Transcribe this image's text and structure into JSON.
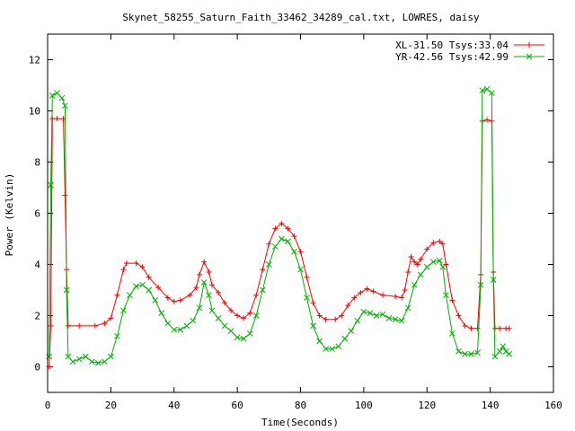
{
  "chart_data": {
    "type": "line",
    "title": "Skynet_58255_Saturn_Faith_33462_34289_cal.txt, LOWRES, daisy",
    "xlabel": "Time(Seconds)",
    "ylabel": "Power (Kelvin)",
    "xlim": [
      0,
      160
    ],
    "ylim": [
      -1,
      13
    ],
    "xticks": [
      0,
      20,
      40,
      60,
      80,
      100,
      120,
      140,
      160
    ],
    "yticks": [
      0,
      2,
      4,
      6,
      8,
      10,
      12
    ],
    "grid": false,
    "legend_position": "top-right",
    "series": [
      {
        "name": "XL-31.50 Tsys:33.04",
        "color": "#ff0000",
        "marker": "plus",
        "points": [
          [
            0.5,
            0.0
          ],
          [
            1,
            1.6
          ],
          [
            1.5,
            9.7
          ],
          [
            3,
            9.7
          ],
          [
            5,
            9.7
          ],
          [
            5.5,
            6.7
          ],
          [
            6,
            3.8
          ],
          [
            6.5,
            1.6
          ],
          [
            10,
            1.6
          ],
          [
            15,
            1.6
          ],
          [
            18,
            1.7
          ],
          [
            20,
            1.9
          ],
          [
            22,
            2.8
          ],
          [
            24,
            3.8
          ],
          [
            25,
            4.05
          ],
          [
            28,
            4.05
          ],
          [
            30,
            3.9
          ],
          [
            32,
            3.5
          ],
          [
            35,
            3.1
          ],
          [
            38,
            2.7
          ],
          [
            40,
            2.55
          ],
          [
            42,
            2.6
          ],
          [
            45,
            2.8
          ],
          [
            47,
            3.1
          ],
          [
            48,
            3.6
          ],
          [
            49.5,
            4.1
          ],
          [
            51,
            3.7
          ],
          [
            52,
            3.2
          ],
          [
            54,
            2.9
          ],
          [
            56,
            2.5
          ],
          [
            58,
            2.2
          ],
          [
            60,
            2.0
          ],
          [
            62,
            1.9
          ],
          [
            64,
            2.1
          ],
          [
            66,
            2.8
          ],
          [
            68,
            3.8
          ],
          [
            70,
            4.8
          ],
          [
            72,
            5.4
          ],
          [
            74,
            5.6
          ],
          [
            76,
            5.4
          ],
          [
            78,
            5.1
          ],
          [
            80,
            4.5
          ],
          [
            82,
            3.5
          ],
          [
            84,
            2.5
          ],
          [
            86,
            2.0
          ],
          [
            88,
            1.85
          ],
          [
            91,
            1.85
          ],
          [
            93,
            2.0
          ],
          [
            95,
            2.4
          ],
          [
            97,
            2.7
          ],
          [
            99,
            2.9
          ],
          [
            101,
            3.05
          ],
          [
            103,
            2.95
          ],
          [
            106,
            2.8
          ],
          [
            110,
            2.75
          ],
          [
            112,
            2.7
          ],
          [
            113,
            3.0
          ],
          [
            114,
            3.7
          ],
          [
            115,
            4.3
          ],
          [
            116,
            4.1
          ],
          [
            117,
            4.0
          ],
          [
            118,
            4.2
          ],
          [
            120,
            4.6
          ],
          [
            122,
            4.85
          ],
          [
            124,
            4.9
          ],
          [
            125,
            4.8
          ],
          [
            126,
            4.0
          ],
          [
            128,
            2.6
          ],
          [
            130,
            2.0
          ],
          [
            132,
            1.6
          ],
          [
            134,
            1.5
          ],
          [
            136,
            1.5
          ],
          [
            137,
            3.6
          ],
          [
            137.5,
            9.6
          ],
          [
            139,
            9.65
          ],
          [
            140.5,
            9.6
          ],
          [
            141,
            3.7
          ],
          [
            141.5,
            1.5
          ],
          [
            143,
            1.5
          ],
          [
            145,
            1.5
          ],
          [
            146,
            1.5
          ]
        ]
      },
      {
        "name": "YR-42.56 Tsys:42.99",
        "color": "#00b000",
        "marker": "cross",
        "points": [
          [
            0.5,
            0.4
          ],
          [
            1,
            7.1
          ],
          [
            1.5,
            10.6
          ],
          [
            3,
            10.7
          ],
          [
            4.5,
            10.5
          ],
          [
            5.5,
            10.2
          ],
          [
            6,
            3.0
          ],
          [
            6.5,
            0.4
          ],
          [
            8,
            0.2
          ],
          [
            10,
            0.3
          ],
          [
            12,
            0.4
          ],
          [
            14,
            0.2
          ],
          [
            16,
            0.15
          ],
          [
            18,
            0.2
          ],
          [
            20,
            0.4
          ],
          [
            22,
            1.2
          ],
          [
            24,
            2.2
          ],
          [
            26,
            2.8
          ],
          [
            28,
            3.15
          ],
          [
            30,
            3.2
          ],
          [
            32,
            3.0
          ],
          [
            34,
            2.6
          ],
          [
            36,
            2.1
          ],
          [
            38,
            1.7
          ],
          [
            40,
            1.45
          ],
          [
            42,
            1.45
          ],
          [
            44,
            1.6
          ],
          [
            46,
            1.8
          ],
          [
            48,
            2.3
          ],
          [
            49.5,
            3.3
          ],
          [
            51,
            2.8
          ],
          [
            52,
            2.2
          ],
          [
            54,
            1.9
          ],
          [
            56,
            1.6
          ],
          [
            58,
            1.4
          ],
          [
            60,
            1.15
          ],
          [
            62,
            1.1
          ],
          [
            64,
            1.3
          ],
          [
            66,
            2.0
          ],
          [
            68,
            3.0
          ],
          [
            70,
            4.0
          ],
          [
            72,
            4.7
          ],
          [
            74,
            5.0
          ],
          [
            76,
            4.9
          ],
          [
            78,
            4.5
          ],
          [
            80,
            3.8
          ],
          [
            82,
            2.7
          ],
          [
            84,
            1.6
          ],
          [
            86,
            1.0
          ],
          [
            88,
            0.7
          ],
          [
            90,
            0.7
          ],
          [
            92,
            0.8
          ],
          [
            94,
            1.1
          ],
          [
            96,
            1.4
          ],
          [
            98,
            1.8
          ],
          [
            100,
            2.15
          ],
          [
            102,
            2.1
          ],
          [
            104,
            2.0
          ],
          [
            106,
            2.05
          ],
          [
            108,
            1.9
          ],
          [
            110,
            1.85
          ],
          [
            112,
            1.8
          ],
          [
            114,
            2.3
          ],
          [
            116,
            3.2
          ],
          [
            118,
            3.6
          ],
          [
            120,
            3.9
          ],
          [
            122,
            4.1
          ],
          [
            124,
            4.15
          ],
          [
            125,
            3.9
          ],
          [
            126,
            2.8
          ],
          [
            128,
            1.3
          ],
          [
            130,
            0.6
          ],
          [
            132,
            0.5
          ],
          [
            134,
            0.5
          ],
          [
            136,
            0.55
          ],
          [
            137,
            3.2
          ],
          [
            137.5,
            10.8
          ],
          [
            139,
            10.85
          ],
          [
            140.5,
            10.7
          ],
          [
            141,
            3.4
          ],
          [
            141.5,
            0.4
          ],
          [
            143,
            0.6
          ],
          [
            144,
            0.8
          ],
          [
            145,
            0.6
          ],
          [
            146,
            0.5
          ]
        ]
      }
    ]
  }
}
